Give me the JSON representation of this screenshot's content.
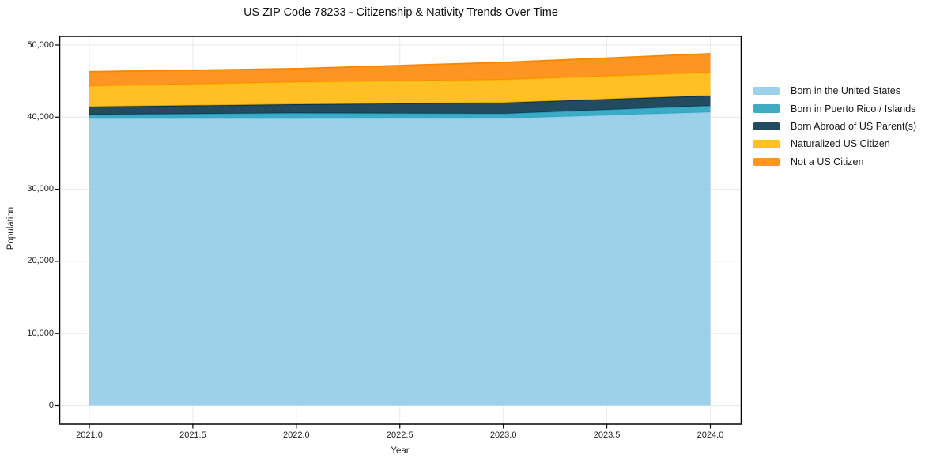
{
  "chart_data": {
    "type": "area",
    "stacked": true,
    "title": "US ZIP Code 78233 - Citizenship & Nativity Trends Over Time",
    "xlabel": "Year",
    "ylabel": "Population",
    "x": [
      2021,
      2022,
      2023,
      2024
    ],
    "series": [
      {
        "name": "Born in the United States",
        "color": "#8ecae6",
        "values": [
          39800,
          39800,
          39820,
          40690
        ]
      },
      {
        "name": "Born in Puerto Rico / Islands",
        "color": "#219ebc",
        "values": [
          550,
          760,
          660,
          880
        ]
      },
      {
        "name": "Born Abroad of US Parent(s)",
        "color": "#023047",
        "values": [
          1100,
          1220,
          1530,
          1420
        ]
      },
      {
        "name": "Naturalized US Citizen",
        "color": "#ffb703",
        "values": [
          2850,
          3070,
          3170,
          3180
        ]
      },
      {
        "name": "Not a US Citizen",
        "color": "#fb8500",
        "values": [
          2000,
          1870,
          2410,
          2630
        ]
      }
    ],
    "totals": [
      46300,
      46720,
      47590,
      48800
    ],
    "xlim": [
      2021,
      2024
    ],
    "ylim": [
      0,
      50000
    ],
    "x_ticks": [
      {
        "value": 2021.0,
        "label": "2021.0"
      },
      {
        "value": 2021.5,
        "label": "2021.5"
      },
      {
        "value": 2022.0,
        "label": "2022.0"
      },
      {
        "value": 2022.5,
        "label": "2022.5"
      },
      {
        "value": 2023.0,
        "label": "2023.0"
      },
      {
        "value": 2023.5,
        "label": "2023.5"
      },
      {
        "value": 2024.0,
        "label": "2024.0"
      }
    ],
    "y_ticks": [
      {
        "value": 0,
        "label": "0"
      },
      {
        "value": 10000,
        "label": "10,000"
      },
      {
        "value": 20000,
        "label": "20,000"
      },
      {
        "value": 30000,
        "label": "30,000"
      },
      {
        "value": 40000,
        "label": "40,000"
      },
      {
        "value": 50000,
        "label": "50,000"
      }
    ],
    "fill_opacity": 0.87,
    "grid": true,
    "grid_color": "#eaeaea",
    "frame_color": "#000000",
    "legend_position": "right"
  }
}
